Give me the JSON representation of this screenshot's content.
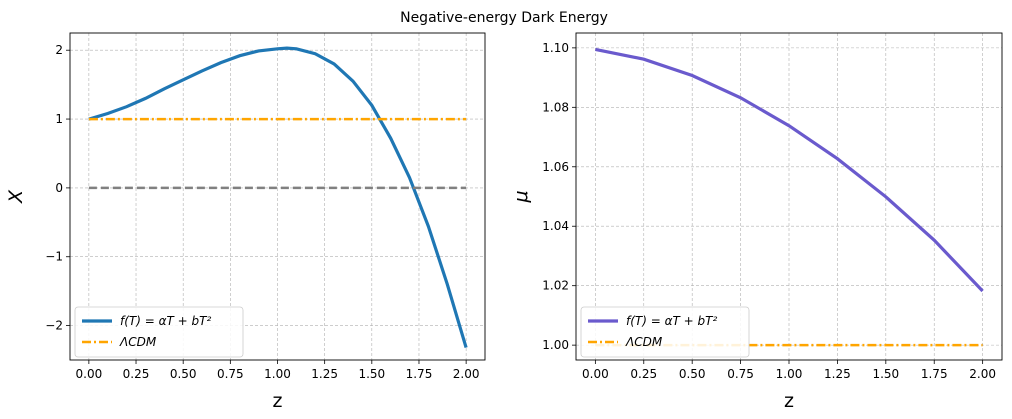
{
  "suptitle": "Negative-energy Dark Energy",
  "chart_data": [
    {
      "type": "line",
      "panel": "left",
      "xlabel": "z",
      "ylabel": "X",
      "xlim": [
        -0.1,
        2.1
      ],
      "ylim": [
        -2.5,
        2.25
      ],
      "xticks": [
        0.0,
        0.25,
        0.5,
        0.75,
        1.0,
        1.25,
        1.5,
        1.75,
        2.0
      ],
      "xtick_labels": [
        "0.00",
        "0.25",
        "0.50",
        "0.75",
        "1.00",
        "1.25",
        "1.50",
        "1.75",
        "2.00"
      ],
      "yticks": [
        -2,
        -1,
        0,
        1,
        2
      ],
      "ytick_labels": [
        "−2",
        "−1",
        "0",
        "1",
        "2"
      ],
      "grid": true,
      "legend_position": "lower-left",
      "series": [
        {
          "name": "f(T) = αT + bT²",
          "color": "#1f77b4",
          "style": "solid",
          "x": [
            0.0,
            0.1,
            0.2,
            0.3,
            0.4,
            0.5,
            0.6,
            0.7,
            0.8,
            0.9,
            1.0,
            1.05,
            1.1,
            1.2,
            1.3,
            1.4,
            1.5,
            1.6,
            1.7,
            1.8,
            1.9,
            2.0
          ],
          "y": [
            1.0,
            1.08,
            1.18,
            1.3,
            1.44,
            1.57,
            1.7,
            1.82,
            1.92,
            1.99,
            2.02,
            2.03,
            2.02,
            1.95,
            1.8,
            1.55,
            1.2,
            0.72,
            0.15,
            -0.56,
            -1.4,
            -2.32
          ]
        },
        {
          "name": "ΛCDM",
          "color": "#ffa500",
          "style": "dashdot",
          "x": [
            0.0,
            2.0
          ],
          "y": [
            1.0,
            1.0
          ]
        },
        {
          "name": "",
          "color": "#808080",
          "style": "dashed",
          "x": [
            0.0,
            2.0
          ],
          "y": [
            0.0,
            0.0
          ]
        }
      ]
    },
    {
      "type": "line",
      "panel": "right",
      "xlabel": "z",
      "ylabel": "μ",
      "xlim": [
        -0.1,
        2.1
      ],
      "ylim": [
        0.995,
        1.105
      ],
      "xticks": [
        0.0,
        0.25,
        0.5,
        0.75,
        1.0,
        1.25,
        1.5,
        1.75,
        2.0
      ],
      "xtick_labels": [
        "0.00",
        "0.25",
        "0.50",
        "0.75",
        "1.00",
        "1.25",
        "1.50",
        "1.75",
        "2.00"
      ],
      "yticks": [
        1.0,
        1.02,
        1.04,
        1.06,
        1.08,
        1.1
      ],
      "ytick_labels": [
        "1.00",
        "1.02",
        "1.04",
        "1.06",
        "1.08",
        "1.10"
      ],
      "grid": true,
      "legend_position": "lower-left",
      "series": [
        {
          "name": "f(T) = αT + bT²",
          "color": "#6a5acd",
          "style": "solid",
          "x": [
            0.0,
            0.25,
            0.5,
            0.75,
            1.0,
            1.25,
            1.5,
            1.75,
            2.0
          ],
          "y": [
            1.0995,
            1.0962,
            1.0907,
            1.0832,
            1.0738,
            1.0627,
            1.0499,
            1.0353,
            1.0182
          ]
        },
        {
          "name": "ΛCDM",
          "color": "#ffa500",
          "style": "dashdot",
          "x": [
            0.0,
            2.0
          ],
          "y": [
            1.0,
            1.0
          ]
        }
      ]
    }
  ]
}
